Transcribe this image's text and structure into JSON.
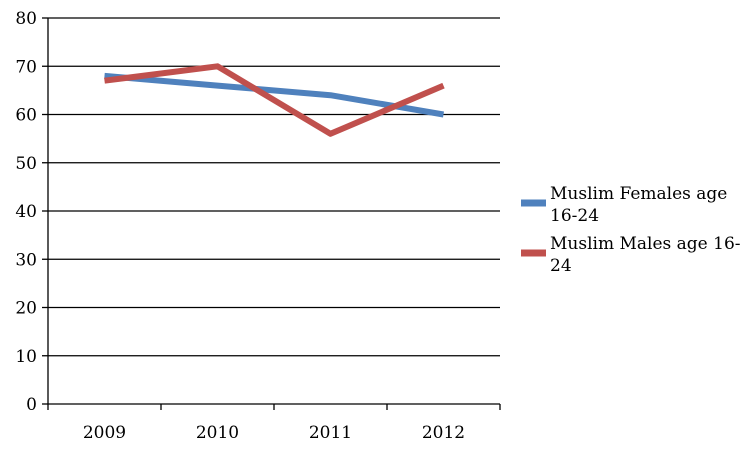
{
  "chart_data": {
    "type": "line",
    "title": "",
    "xlabel": "",
    "ylabel": "",
    "categories": [
      "2009",
      "2010",
      "2011",
      "2012"
    ],
    "ylim": [
      0,
      80
    ],
    "yticks": [
      0,
      10,
      20,
      30,
      40,
      50,
      60,
      70,
      80
    ],
    "grid": true,
    "legend_position": "right",
    "series": [
      {
        "name_lines": [
          "Muslim Females age",
          "16-24"
        ],
        "color": "#4f81bd",
        "values": [
          68,
          66,
          64,
          60
        ]
      },
      {
        "name_lines": [
          "Muslim Males age 16-",
          "24"
        ],
        "color": "#c0504d",
        "values": [
          67,
          70,
          56,
          66
        ]
      }
    ]
  }
}
